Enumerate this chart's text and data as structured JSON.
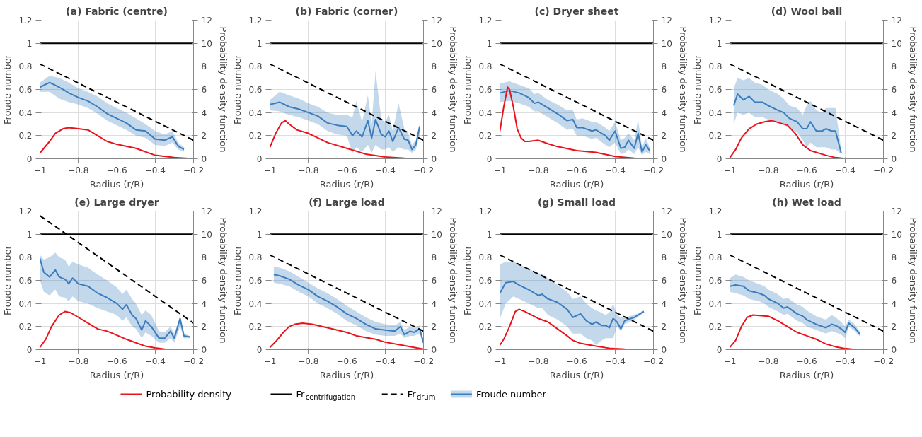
{
  "chart_data": [
    {
      "type": "line",
      "title": "(a) Fabric (centre)",
      "xlabel": "Radius (r/R)",
      "ylabel": "Froude number",
      "y2label": "Probability density function",
      "xlim": [
        -1,
        -0.2
      ],
      "xticks": [
        {
          "value": -1,
          "label": "−1"
        },
        {
          "value": -0.8,
          "label": "−0.8"
        },
        {
          "value": -0.6,
          "label": "−0.6"
        },
        {
          "value": -0.4,
          "label": "−0.4"
        },
        {
          "value": -0.2,
          "label": "−0.2"
        }
      ],
      "ylim": [
        0,
        1.2
      ],
      "yticks": [
        0,
        0.2,
        0.4,
        0.6,
        0.8,
        1,
        1.2
      ],
      "y2lim": [
        0,
        12
      ],
      "y2ticks": [
        0,
        2,
        4,
        6,
        8,
        10,
        12
      ],
      "grid": true,
      "legend": "bottom",
      "series": [
        {
          "name": "Probability density",
          "color": "#e8141c",
          "axis": "y2",
          "x": [
            -1,
            -0.95,
            -0.92,
            -0.88,
            -0.85,
            -0.8,
            -0.75,
            -0.7,
            -0.65,
            -0.6,
            -0.5,
            -0.4,
            -0.3,
            -0.2
          ],
          "values": [
            0.5,
            1.5,
            2.2,
            2.6,
            2.7,
            2.6,
            2.5,
            2.0,
            1.5,
            1.25,
            0.9,
            0.3,
            0.1,
            0
          ]
        },
        {
          "name": "Fr$_{centrifugation}$",
          "color": "#000000",
          "x": [
            -1,
            -0.2
          ],
          "values": [
            1,
            1
          ]
        },
        {
          "name": "Fr$_{drum}$",
          "color": "#000000",
          "line_style": "dashed",
          "x": [
            -1,
            -0.2
          ],
          "values": [
            0.82,
            0.16
          ]
        },
        {
          "name": "Froude number",
          "color": "#3a7dbf",
          "x": [
            -1,
            -0.95,
            -0.9,
            -0.85,
            -0.8,
            -0.75,
            -0.7,
            -0.65,
            -0.6,
            -0.55,
            -0.5,
            -0.45,
            -0.4,
            -0.35,
            -0.31,
            -0.28,
            -0.25
          ],
          "values": [
            0.62,
            0.66,
            0.62,
            0.57,
            0.53,
            0.5,
            0.45,
            0.39,
            0.35,
            0.31,
            0.25,
            0.24,
            0.17,
            0.16,
            0.19,
            0.11,
            0.08
          ],
          "lower": [
            0.58,
            0.58,
            0.52,
            0.49,
            0.47,
            0.44,
            0.39,
            0.33,
            0.29,
            0.25,
            0.2,
            0.18,
            0.12,
            0.11,
            0.14,
            0.08,
            0.06
          ],
          "upper": [
            0.66,
            0.72,
            0.7,
            0.66,
            0.61,
            0.58,
            0.54,
            0.48,
            0.44,
            0.4,
            0.35,
            0.3,
            0.24,
            0.21,
            0.24,
            0.14,
            0.1
          ]
        }
      ]
    },
    {
      "type": "line",
      "title": "(b) Fabric (corner)",
      "xlabel": "Radius (r/R)",
      "ylabel": "Froude number",
      "y2label": "Probability density function",
      "xlim": [
        -1,
        -0.2
      ],
      "xticks": [
        {
          "value": -1,
          "label": "−1"
        },
        {
          "value": -0.8,
          "label": "−0.8"
        },
        {
          "value": -0.6,
          "label": "−0.6"
        },
        {
          "value": -0.4,
          "label": "−0.4"
        },
        {
          "value": -0.2,
          "label": "−0.2"
        }
      ],
      "ylim": [
        0,
        1.2
      ],
      "yticks": [
        0,
        0.2,
        0.4,
        0.6,
        0.8,
        1,
        1.2
      ],
      "y2lim": [
        0,
        12
      ],
      "y2ticks": [
        0,
        2,
        4,
        6,
        8,
        10,
        12
      ],
      "grid": true,
      "series": [
        {
          "color": "#e8141c",
          "axis": "y2",
          "x": [
            -1,
            -0.97,
            -0.94,
            -0.92,
            -0.9,
            -0.86,
            -0.8,
            -0.75,
            -0.7,
            -0.6,
            -0.5,
            -0.4,
            -0.3,
            -0.2
          ],
          "values": [
            1.0,
            2.2,
            3.1,
            3.3,
            3.0,
            2.5,
            2.2,
            1.8,
            1.4,
            0.9,
            0.4,
            0.15,
            0.05,
            0
          ]
        },
        {
          "color": "#000000",
          "x": [
            -1,
            -0.2
          ],
          "values": [
            1,
            1
          ]
        },
        {
          "color": "#000000",
          "line_style": "dashed",
          "x": [
            -1,
            -0.2
          ],
          "values": [
            0.82,
            0.16
          ]
        },
        {
          "color": "#3a7dbf",
          "x": [
            -1,
            -0.95,
            -0.9,
            -0.85,
            -0.8,
            -0.75,
            -0.7,
            -0.65,
            -0.6,
            -0.57,
            -0.55,
            -0.52,
            -0.49,
            -0.47,
            -0.45,
            -0.42,
            -0.4,
            -0.38,
            -0.36,
            -0.33,
            -0.3,
            -0.28,
            -0.26,
            -0.24,
            -0.22
          ],
          "values": [
            0.47,
            0.49,
            0.45,
            0.43,
            0.4,
            0.37,
            0.31,
            0.29,
            0.28,
            0.2,
            0.24,
            0.19,
            0.33,
            0.18,
            0.34,
            0.21,
            0.19,
            0.24,
            0.15,
            0.27,
            0.17,
            0.16,
            0.08,
            0.12,
            0.28
          ],
          "lower": [
            0.42,
            0.41,
            0.38,
            0.36,
            0.33,
            0.3,
            0.24,
            0.21,
            0.2,
            0.05,
            0.1,
            0.06,
            0.12,
            0.05,
            0.12,
            0.08,
            0.08,
            0.1,
            0.06,
            0.1,
            0.08,
            0.08,
            0.05,
            0.08,
            0.2
          ],
          "upper": [
            0.51,
            0.58,
            0.55,
            0.52,
            0.48,
            0.45,
            0.4,
            0.38,
            0.38,
            0.36,
            0.5,
            0.32,
            0.55,
            0.3,
            0.76,
            0.34,
            0.32,
            0.38,
            0.24,
            0.48,
            0.26,
            0.22,
            0.12,
            0.16,
            0.3
          ]
        }
      ]
    },
    {
      "type": "line",
      "title": "(c) Dryer sheet",
      "xlabel": "Radius (r/R)",
      "ylabel": "Froude number",
      "y2label": "Probability density function",
      "xlim": [
        -1,
        -0.2
      ],
      "xticks": [
        {
          "value": -1,
          "label": "−1"
        },
        {
          "value": -0.8,
          "label": "−0.8"
        },
        {
          "value": -0.6,
          "label": "−0.6"
        },
        {
          "value": -0.4,
          "label": "−0.4"
        },
        {
          "value": -0.2,
          "label": "−0.2"
        }
      ],
      "ylim": [
        0,
        1.2
      ],
      "yticks": [
        0,
        0.2,
        0.4,
        0.6,
        0.8,
        1,
        1.2
      ],
      "y2lim": [
        0,
        12
      ],
      "y2ticks": [
        0,
        2,
        4,
        6,
        8,
        10,
        12
      ],
      "grid": true,
      "series": [
        {
          "color": "#e8141c",
          "axis": "y2",
          "x": [
            -1,
            -0.98,
            -0.96,
            -0.95,
            -0.93,
            -0.91,
            -0.89,
            -0.87,
            -0.85,
            -0.8,
            -0.75,
            -0.7,
            -0.6,
            -0.5,
            -0.4,
            -0.3,
            -0.2
          ],
          "values": [
            2.4,
            4.5,
            6.2,
            6.0,
            4.5,
            2.6,
            1.8,
            1.5,
            1.5,
            1.6,
            1.3,
            1.05,
            0.7,
            0.55,
            0.2,
            0.05,
            0
          ]
        },
        {
          "color": "#000000",
          "x": [
            -1,
            -0.2
          ],
          "values": [
            1,
            1
          ]
        },
        {
          "color": "#000000",
          "line_style": "dashed",
          "x": [
            -1,
            -0.2
          ],
          "values": [
            0.82,
            0.16
          ]
        },
        {
          "color": "#3a7dbf",
          "x": [
            -1,
            -0.95,
            -0.9,
            -0.85,
            -0.82,
            -0.8,
            -0.75,
            -0.7,
            -0.65,
            -0.62,
            -0.6,
            -0.57,
            -0.52,
            -0.5,
            -0.45,
            -0.43,
            -0.4,
            -0.37,
            -0.35,
            -0.33,
            -0.3,
            -0.28,
            -0.26,
            -0.24,
            -0.22
          ],
          "values": [
            0.57,
            0.59,
            0.57,
            0.53,
            0.48,
            0.49,
            0.44,
            0.39,
            0.33,
            0.34,
            0.27,
            0.27,
            0.24,
            0.25,
            0.2,
            0.16,
            0.24,
            0.09,
            0.1,
            0.16,
            0.09,
            0.22,
            0.06,
            0.12,
            0.07
          ],
          "lower": [
            0.49,
            0.5,
            0.48,
            0.45,
            0.41,
            0.41,
            0.36,
            0.31,
            0.25,
            0.26,
            0.2,
            0.2,
            0.17,
            0.18,
            0.12,
            0.1,
            0.14,
            0.04,
            0.05,
            0.08,
            0.04,
            0.1,
            0.03,
            0.06,
            0.04
          ],
          "upper": [
            0.65,
            0.67,
            0.64,
            0.61,
            0.56,
            0.57,
            0.51,
            0.47,
            0.42,
            0.42,
            0.34,
            0.35,
            0.32,
            0.32,
            0.27,
            0.24,
            0.32,
            0.16,
            0.18,
            0.22,
            0.16,
            0.34,
            0.1,
            0.18,
            0.1
          ]
        }
      ]
    },
    {
      "type": "line",
      "title": "(d) Wool ball",
      "xlabel": "Radius (r/R)",
      "ylabel": "Froude number",
      "y2label": "Probability density function",
      "xlim": [
        -1,
        -0.2
      ],
      "xticks": [
        {
          "value": -1,
          "label": "−1"
        },
        {
          "value": -0.8,
          "label": "−0.8"
        },
        {
          "value": -0.6,
          "label": "−0.6"
        },
        {
          "value": -0.4,
          "label": "−0.4"
        },
        {
          "value": -0.2,
          "label": "−0.2"
        }
      ],
      "ylim": [
        0,
        1.2
      ],
      "yticks": [
        0,
        0.2,
        0.4,
        0.6,
        0.8,
        1,
        1.2
      ],
      "y2lim": [
        0,
        12
      ],
      "y2ticks": [
        0,
        2,
        4,
        6,
        8,
        10,
        12
      ],
      "grid": true,
      "series": [
        {
          "color": "#e8141c",
          "axis": "y2",
          "x": [
            -1,
            -0.97,
            -0.94,
            -0.9,
            -0.86,
            -0.82,
            -0.78,
            -0.74,
            -0.7,
            -0.66,
            -0.62,
            -0.58,
            -0.5,
            -0.45,
            -0.4,
            -0.3,
            -0.2
          ],
          "values": [
            0.1,
            0.8,
            1.8,
            2.6,
            3.0,
            3.2,
            3.3,
            3.1,
            2.9,
            2.2,
            1.2,
            0.7,
            0.3,
            0.1,
            0.02,
            0,
            0
          ]
        },
        {
          "color": "#000000",
          "x": [
            -1,
            -0.2
          ],
          "values": [
            1,
            1
          ]
        },
        {
          "color": "#000000",
          "line_style": "dashed",
          "x": [
            -1,
            -0.2
          ],
          "values": [
            0.82,
            0.16
          ]
        },
        {
          "color": "#3a7dbf",
          "x": [
            -0.98,
            -0.96,
            -0.93,
            -0.9,
            -0.87,
            -0.83,
            -0.8,
            -0.75,
            -0.72,
            -0.69,
            -0.65,
            -0.62,
            -0.6,
            -0.58,
            -0.55,
            -0.52,
            -0.5,
            -0.47,
            -0.45,
            -0.42
          ],
          "values": [
            0.46,
            0.56,
            0.51,
            0.54,
            0.49,
            0.49,
            0.46,
            0.42,
            0.4,
            0.35,
            0.32,
            0.26,
            0.26,
            0.32,
            0.24,
            0.24,
            0.26,
            0.24,
            0.24,
            0.05
          ],
          "lower": [
            0.3,
            0.4,
            0.38,
            0.4,
            0.36,
            0.36,
            0.34,
            0.32,
            0.3,
            0.26,
            0.23,
            0.16,
            0.1,
            0.14,
            0.1,
            0.1,
            0.1,
            0.08,
            0.08,
            0.04
          ],
          "upper": [
            0.61,
            0.7,
            0.68,
            0.7,
            0.66,
            0.64,
            0.6,
            0.56,
            0.52,
            0.46,
            0.44,
            0.38,
            0.46,
            0.5,
            0.42,
            0.4,
            0.44,
            0.44,
            0.44,
            0.08
          ]
        }
      ]
    },
    {
      "type": "line",
      "title": "(e) Large dryer",
      "xlabel": "Radius (r/R)",
      "ylabel": "Froude number",
      "y2label": "Probability density function",
      "xlim": [
        -1,
        -0.2
      ],
      "xticks": [
        {
          "value": -1,
          "label": "−1"
        },
        {
          "value": -0.8,
          "label": "−0.8"
        },
        {
          "value": -0.6,
          "label": "−0.6"
        },
        {
          "value": -0.4,
          "label": "−0.4"
        },
        {
          "value": -0.2,
          "label": "−0.2"
        }
      ],
      "ylim": [
        0,
        1.2
      ],
      "yticks": [
        0,
        0.2,
        0.4,
        0.6,
        0.8,
        1,
        1.2
      ],
      "y2lim": [
        0,
        12
      ],
      "y2ticks": [
        0,
        2,
        4,
        6,
        8,
        10,
        12
      ],
      "grid": true,
      "series": [
        {
          "color": "#e8141c",
          "axis": "y2",
          "x": [
            -1,
            -0.97,
            -0.94,
            -0.9,
            -0.87,
            -0.84,
            -0.8,
            -0.75,
            -0.7,
            -0.65,
            -0.62,
            -0.55,
            -0.5,
            -0.45,
            -0.4,
            -0.35,
            -0.3,
            -0.2
          ],
          "values": [
            0.2,
            0.9,
            2.0,
            3.0,
            3.3,
            3.2,
            2.8,
            2.3,
            1.8,
            1.6,
            1.4,
            0.9,
            0.6,
            0.3,
            0.15,
            0.05,
            0.02,
            0
          ]
        },
        {
          "color": "#000000",
          "x": [
            -1,
            -0.2
          ],
          "values": [
            1,
            1
          ]
        },
        {
          "color": "#000000",
          "line_style": "dashed",
          "x": [
            -1,
            -0.2
          ],
          "values": [
            1.16,
            0.23
          ]
        },
        {
          "color": "#3a7dbf",
          "x": [
            -1,
            -0.98,
            -0.95,
            -0.92,
            -0.9,
            -0.87,
            -0.85,
            -0.83,
            -0.8,
            -0.75,
            -0.7,
            -0.65,
            -0.6,
            -0.57,
            -0.55,
            -0.52,
            -0.5,
            -0.47,
            -0.45,
            -0.42,
            -0.38,
            -0.35,
            -0.32,
            -0.3,
            -0.27,
            -0.25,
            -0.22
          ],
          "values": [
            0.79,
            0.67,
            0.63,
            0.69,
            0.63,
            0.61,
            0.57,
            0.62,
            0.57,
            0.55,
            0.49,
            0.45,
            0.4,
            0.35,
            0.39,
            0.3,
            0.27,
            0.17,
            0.25,
            0.2,
            0.1,
            0.1,
            0.16,
            0.1,
            0.27,
            0.12,
            0.11
          ],
          "lower": [
            0.6,
            0.5,
            0.47,
            0.52,
            0.46,
            0.45,
            0.42,
            0.46,
            0.42,
            0.4,
            0.36,
            0.33,
            0.3,
            0.25,
            0.28,
            0.2,
            0.18,
            0.1,
            0.15,
            0.12,
            0.06,
            0.06,
            0.1,
            0.06,
            0.2,
            0.1,
            0.1
          ],
          "upper": [
            0.82,
            0.78,
            0.8,
            0.84,
            0.8,
            0.78,
            0.72,
            0.76,
            0.74,
            0.71,
            0.65,
            0.6,
            0.54,
            0.48,
            0.52,
            0.44,
            0.4,
            0.3,
            0.34,
            0.3,
            0.16,
            0.15,
            0.2,
            0.14,
            0.28,
            0.14,
            0.12
          ]
        }
      ]
    },
    {
      "type": "line",
      "title": "(f) Large load",
      "xlabel": "Radius (r/R)",
      "ylabel": "Froude number",
      "y2label": "Probability density function",
      "xlim": [
        -1,
        -0.2
      ],
      "xticks": [
        {
          "value": -1,
          "label": "−1"
        },
        {
          "value": -0.8,
          "label": "−0.8"
        },
        {
          "value": -0.6,
          "label": "−0.6"
        },
        {
          "value": -0.4,
          "label": "−0.4"
        },
        {
          "value": -0.2,
          "label": "−0.2"
        }
      ],
      "ylim": [
        0,
        1.2
      ],
      "yticks": [
        0,
        0.2,
        0.4,
        0.6,
        0.8,
        1,
        1.2
      ],
      "y2lim": [
        0,
        12
      ],
      "y2ticks": [
        0,
        2,
        4,
        6,
        8,
        10,
        12
      ],
      "grid": true,
      "series": [
        {
          "color": "#e8141c",
          "axis": "y2",
          "x": [
            -1,
            -0.97,
            -0.93,
            -0.9,
            -0.87,
            -0.83,
            -0.78,
            -0.7,
            -0.6,
            -0.55,
            -0.45,
            -0.4,
            -0.3,
            -0.2
          ],
          "values": [
            0.2,
            0.7,
            1.5,
            2.0,
            2.2,
            2.3,
            2.2,
            1.9,
            1.5,
            1.2,
            0.9,
            0.65,
            0.35,
            0.05
          ]
        },
        {
          "color": "#000000",
          "x": [
            -1,
            -0.2
          ],
          "values": [
            1,
            1
          ]
        },
        {
          "color": "#000000",
          "line_style": "dashed",
          "x": [
            -1,
            -0.2
          ],
          "values": [
            0.82,
            0.16
          ]
        },
        {
          "color": "#3a7dbf",
          "x": [
            -0.98,
            -0.95,
            -0.9,
            -0.85,
            -0.8,
            -0.75,
            -0.7,
            -0.65,
            -0.6,
            -0.55,
            -0.5,
            -0.45,
            -0.4,
            -0.35,
            -0.32,
            -0.3,
            -0.27,
            -0.25,
            -0.22,
            -0.2
          ],
          "values": [
            0.65,
            0.64,
            0.61,
            0.56,
            0.52,
            0.46,
            0.42,
            0.37,
            0.31,
            0.27,
            0.22,
            0.18,
            0.17,
            0.16,
            0.2,
            0.13,
            0.16,
            0.15,
            0.18,
            0.06
          ],
          "lower": [
            0.58,
            0.57,
            0.55,
            0.5,
            0.46,
            0.4,
            0.36,
            0.31,
            0.25,
            0.21,
            0.16,
            0.13,
            0.12,
            0.12,
            0.14,
            0.1,
            0.12,
            0.12,
            0.14,
            0.04
          ],
          "upper": [
            0.72,
            0.71,
            0.68,
            0.63,
            0.58,
            0.53,
            0.49,
            0.44,
            0.38,
            0.33,
            0.28,
            0.24,
            0.22,
            0.21,
            0.24,
            0.17,
            0.2,
            0.19,
            0.21,
            0.08
          ]
        }
      ]
    },
    {
      "type": "line",
      "title": "(g) Small load",
      "xlabel": "Radius (r/R)",
      "ylabel": "Froude number",
      "y2label": "Probability density function",
      "xlim": [
        -1,
        -0.2
      ],
      "xticks": [
        {
          "value": -1,
          "label": "−1"
        },
        {
          "value": -0.8,
          "label": "−0.8"
        },
        {
          "value": -0.6,
          "label": "−0.6"
        },
        {
          "value": -0.4,
          "label": "−0.4"
        },
        {
          "value": -0.2,
          "label": "−0.2"
        }
      ],
      "ylim": [
        0,
        1.2
      ],
      "yticks": [
        0,
        0.2,
        0.4,
        0.6,
        0.8,
        1,
        1.2
      ],
      "y2lim": [
        0,
        12
      ],
      "y2ticks": [
        0,
        2,
        4,
        6,
        8,
        10,
        12
      ],
      "grid": true,
      "series": [
        {
          "color": "#e8141c",
          "axis": "y2",
          "x": [
            -1,
            -0.98,
            -0.95,
            -0.92,
            -0.9,
            -0.87,
            -0.8,
            -0.75,
            -0.7,
            -0.65,
            -0.62,
            -0.58,
            -0.5,
            -0.42,
            -0.35,
            -0.2
          ],
          "values": [
            0.4,
            0.9,
            2.0,
            3.3,
            3.5,
            3.3,
            2.7,
            2.4,
            1.8,
            1.2,
            0.8,
            0.55,
            0.3,
            0.1,
            0.05,
            0
          ]
        },
        {
          "color": "#000000",
          "x": [
            -1,
            -0.2
          ],
          "values": [
            1,
            1
          ]
        },
        {
          "color": "#000000",
          "line_style": "dashed",
          "x": [
            -1,
            -0.2
          ],
          "values": [
            0.82,
            0.16
          ]
        },
        {
          "color": "#3a7dbf",
          "x": [
            -1,
            -0.97,
            -0.93,
            -0.9,
            -0.85,
            -0.8,
            -0.78,
            -0.75,
            -0.7,
            -0.65,
            -0.62,
            -0.58,
            -0.55,
            -0.52,
            -0.5,
            -0.47,
            -0.45,
            -0.43,
            -0.41,
            -0.39,
            -0.37,
            -0.35,
            -0.3,
            -0.25
          ],
          "values": [
            0.49,
            0.58,
            0.59,
            0.56,
            0.52,
            0.47,
            0.48,
            0.44,
            0.41,
            0.35,
            0.28,
            0.31,
            0.25,
            0.22,
            0.24,
            0.21,
            0.21,
            0.19,
            0.27,
            0.24,
            0.18,
            0.25,
            0.28,
            0.33
          ],
          "lower": [
            0.27,
            0.4,
            0.46,
            0.44,
            0.4,
            0.36,
            0.36,
            0.3,
            0.26,
            0.2,
            0.14,
            0.14,
            0.1,
            0.08,
            0.04,
            0.08,
            0.1,
            0.1,
            0.1,
            0.2,
            0.16,
            0.22,
            0.26,
            0.32
          ],
          "upper": [
            0.74,
            0.76,
            0.76,
            0.74,
            0.7,
            0.66,
            0.66,
            0.62,
            0.56,
            0.5,
            0.44,
            0.46,
            0.4,
            0.36,
            0.34,
            0.32,
            0.3,
            0.32,
            0.4,
            0.3,
            0.28,
            0.28,
            0.3,
            0.34
          ]
        }
      ]
    },
    {
      "type": "line",
      "title": "(h) Wet load",
      "xlabel": "Radius (r/R)",
      "ylabel": "Froude number",
      "y2label": "Probability density function",
      "xlim": [
        -1,
        -0.2
      ],
      "xticks": [
        {
          "value": -1,
          "label": "−1"
        },
        {
          "value": -0.8,
          "label": "−0.8"
        },
        {
          "value": -0.6,
          "label": "−0.6"
        },
        {
          "value": -0.4,
          "label": "−0.4"
        },
        {
          "value": -0.2,
          "label": "−0.2"
        }
      ],
      "ylim": [
        0,
        1.2
      ],
      "yticks": [
        0,
        0.2,
        0.4,
        0.6,
        0.8,
        1,
        1.2
      ],
      "y2lim": [
        0,
        12
      ],
      "y2ticks": [
        0,
        2,
        4,
        6,
        8,
        10,
        12
      ],
      "grid": true,
      "series": [
        {
          "color": "#e8141c",
          "axis": "y2",
          "x": [
            -1,
            -0.97,
            -0.94,
            -0.91,
            -0.88,
            -0.8,
            -0.75,
            -0.7,
            -0.65,
            -0.6,
            -0.55,
            -0.5,
            -0.45,
            -0.4,
            -0.35,
            -0.3,
            -0.2
          ],
          "values": [
            0.2,
            0.8,
            2.0,
            2.8,
            3.0,
            2.9,
            2.5,
            2.0,
            1.5,
            1.2,
            0.9,
            0.5,
            0.25,
            0.1,
            0.02,
            0,
            0
          ]
        },
        {
          "color": "#000000",
          "x": [
            -1,
            -0.2
          ],
          "values": [
            1,
            1
          ]
        },
        {
          "color": "#000000",
          "line_style": "dashed",
          "x": [
            -1,
            -0.2
          ],
          "values": [
            0.82,
            0.16
          ]
        },
        {
          "color": "#3a7dbf",
          "x": [
            -1,
            -0.97,
            -0.93,
            -0.9,
            -0.85,
            -0.82,
            -0.8,
            -0.75,
            -0.72,
            -0.7,
            -0.65,
            -0.62,
            -0.6,
            -0.55,
            -0.5,
            -0.47,
            -0.45,
            -0.42,
            -0.4,
            -0.38,
            -0.35,
            -0.32
          ],
          "values": [
            0.55,
            0.56,
            0.55,
            0.51,
            0.49,
            0.47,
            0.44,
            0.4,
            0.36,
            0.37,
            0.31,
            0.29,
            0.26,
            0.22,
            0.19,
            0.22,
            0.21,
            0.18,
            0.15,
            0.23,
            0.19,
            0.13
          ],
          "lower": [
            0.5,
            0.49,
            0.47,
            0.44,
            0.42,
            0.4,
            0.37,
            0.33,
            0.3,
            0.31,
            0.25,
            0.23,
            0.2,
            0.17,
            0.14,
            0.16,
            0.15,
            0.13,
            0.1,
            0.2,
            0.16,
            0.11
          ],
          "upper": [
            0.62,
            0.65,
            0.63,
            0.6,
            0.57,
            0.55,
            0.52,
            0.48,
            0.44,
            0.45,
            0.39,
            0.37,
            0.34,
            0.29,
            0.26,
            0.3,
            0.28,
            0.24,
            0.2,
            0.26,
            0.22,
            0.15
          ]
        }
      ]
    }
  ]
}
